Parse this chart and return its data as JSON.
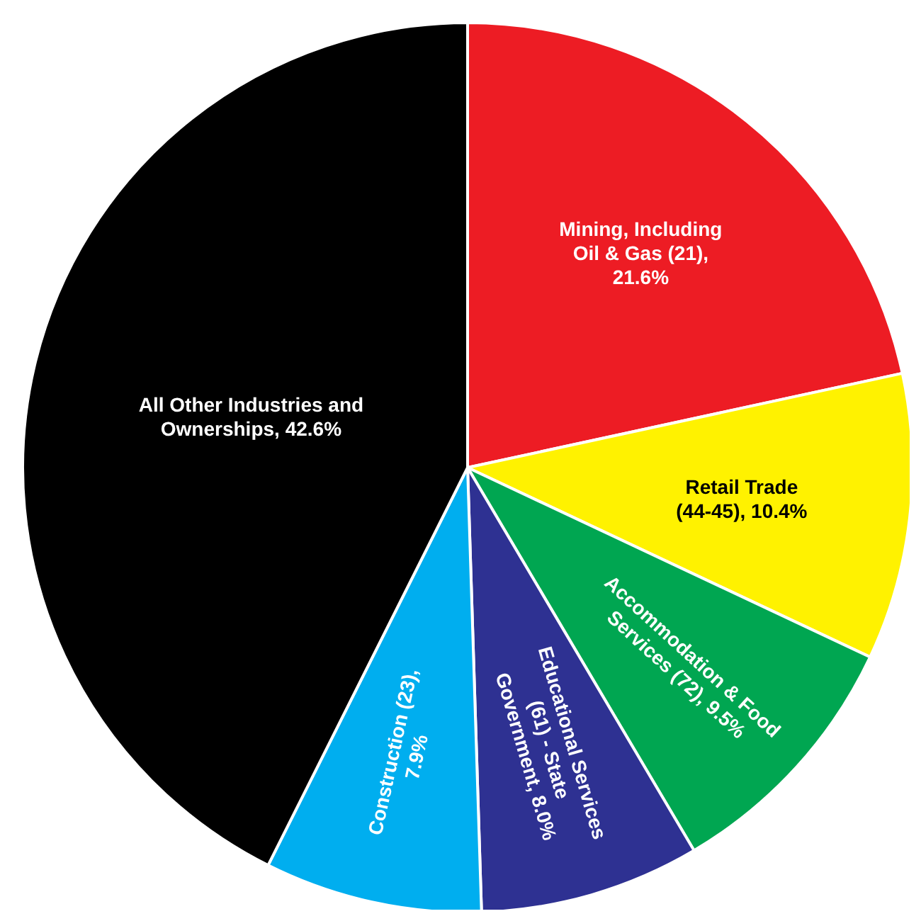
{
  "chart_data": {
    "type": "pie",
    "categories": [
      "Mining, Including Oil & Gas (21), 21.6%",
      "Retail Trade (44-45), 10.4%",
      "Accommodation & Food Services (72), 9.5%",
      "Educational Services (61) - State Government, 8.0%",
      "Construction (23), 7.9%",
      "All Other Industries and Ownerships, 42.6%"
    ],
    "values": [
      21.6,
      10.4,
      9.5,
      8.0,
      7.9,
      42.6
    ],
    "colors": [
      "#ed1c24",
      "#fff200",
      "#00a651",
      "#2e3192",
      "#00aeef",
      "#000000"
    ],
    "legend": false
  }
}
